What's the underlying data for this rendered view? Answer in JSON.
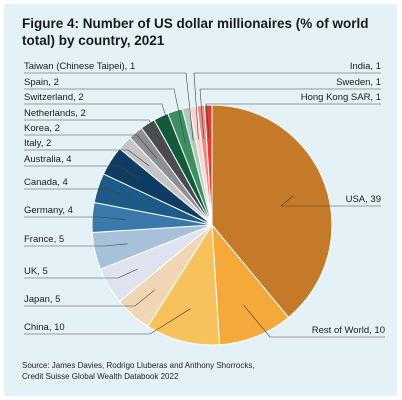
{
  "title": "Figure 4: Number of US dollar millionaires (% of world total) by country, 2021",
  "source_line1": "Source: James Davies, Rodrigo Lluberas and Anthony Shorrocks,",
  "source_line2": "Credit Suisse Global Wealth Databook 2022",
  "chart_data": {
    "type": "pie",
    "title": "Figure 4: Number of US dollar millionaires (% of world total) by country, 2021",
    "unit": "% of world total",
    "slices": [
      {
        "label": "USA, 39",
        "name": "USA",
        "value": 39,
        "color": "#c47a28"
      },
      {
        "label": "Rest of World, 10",
        "name": "Rest of World",
        "value": 10,
        "color": "#f4a93a"
      },
      {
        "label": "China, 10",
        "name": "China",
        "value": 10,
        "color": "#f7c15c"
      },
      {
        "label": "Japan, 5",
        "name": "Japan",
        "value": 5,
        "color": "#f0d6b4"
      },
      {
        "label": "UK, 5",
        "name": "UK",
        "value": 5,
        "color": "#dfe3ef"
      },
      {
        "label": "France, 5",
        "name": "France",
        "value": 5,
        "color": "#a7c1d9"
      },
      {
        "label": "Germany, 4",
        "name": "Germany",
        "value": 4,
        "color": "#3a79ac"
      },
      {
        "label": "Canada, 4",
        "name": "Canada",
        "value": 4,
        "color": "#1d5a87"
      },
      {
        "label": "Australia, 4",
        "name": "Australia",
        "value": 4,
        "color": "#0e3c63"
      },
      {
        "label": "Italy, 2",
        "name": "Italy",
        "value": 2,
        "color": "#c5c5c8"
      },
      {
        "label": "Korea, 2",
        "name": "Korea",
        "value": 2,
        "color": "#8e8f93"
      },
      {
        "label": "Netherlands, 2",
        "name": "Netherlands",
        "value": 2,
        "color": "#4b4c50"
      },
      {
        "label": "Switzerland, 2",
        "name": "Switzerland",
        "value": 2,
        "color": "#0f5b3a"
      },
      {
        "label": "Spain, 2",
        "name": "Spain",
        "value": 2,
        "color": "#3f8d63"
      },
      {
        "label": "Taiwan (Chinese Taipei), 1",
        "name": "Taiwan (Chinese Taipei)",
        "value": 1,
        "color": "#a9cdb7"
      },
      {
        "label": "India, 1",
        "name": "India",
        "value": 1,
        "color": "#f8d3d0"
      },
      {
        "label": "Sweden, 1",
        "name": "Sweden",
        "value": 1,
        "color": "#f08a84"
      },
      {
        "label": "Hong Kong SAR, 1",
        "name": "Hong Kong SAR",
        "value": 1,
        "color": "#e03c31"
      }
    ]
  }
}
